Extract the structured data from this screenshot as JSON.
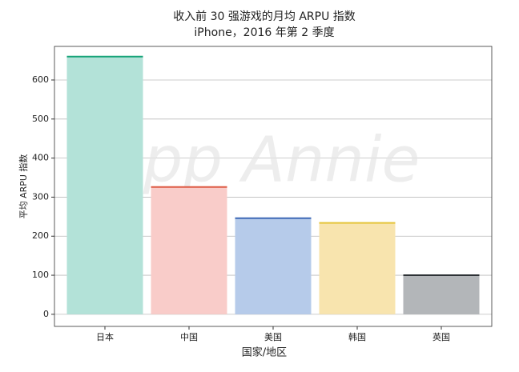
{
  "chart_data": {
    "type": "bar",
    "title": "收入前 30 强游戏的月均 ARPU 指数",
    "subtitle": "iPhone，2016 年第 2 季度",
    "watermark": "App Annie",
    "x_label": "国家/地区",
    "y_label": "平均 ARPU 指数",
    "categories": [
      "日本",
      "中国",
      "美国",
      "韩国",
      "英国"
    ],
    "values": [
      660,
      326,
      246,
      234,
      100
    ],
    "colors": [
      "#b3e2d8",
      "#f9ccc9",
      "#b6cbea",
      "#f8e4ae",
      "#b3b6b9"
    ],
    "edge_colors": [
      "#17a378",
      "#de5a44",
      "#3e69b6",
      "#e5c43a",
      "#2e3236"
    ],
    "ylim": [
      -31,
      686
    ],
    "yticks": [
      0,
      100,
      200,
      300,
      400,
      500,
      600
    ],
    "grid": true
  }
}
